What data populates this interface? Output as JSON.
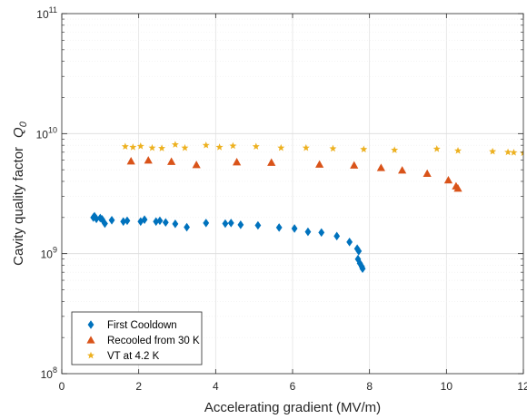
{
  "chart_data": {
    "type": "scatter",
    "xlabel": "Accelerating gradient (MV/m)",
    "ylabel": "Cavity quality factor",
    "ylabel_symbol": "Q",
    "ylabel_subscript": "0",
    "xlim": [
      0,
      12
    ],
    "ylim": [
      100000000,
      100000000000
    ],
    "yscale": "log",
    "grid": true,
    "legend_position": "lower-left",
    "x_ticks": [
      0,
      2,
      4,
      6,
      8,
      10,
      12
    ],
    "x_tick_labels": [
      "0",
      "2",
      "4",
      "6",
      "8",
      "10",
      "12"
    ],
    "y_ticks": [
      {
        "value": 100000000,
        "base": "10",
        "exp": "8"
      },
      {
        "value": 1000000000,
        "base": "10",
        "exp": "9"
      },
      {
        "value": 10000000000,
        "base": "10",
        "exp": "10"
      },
      {
        "value": 100000000000,
        "base": "10",
        "exp": "11"
      }
    ],
    "series": [
      {
        "name": "First Cooldown",
        "marker": "diamond",
        "color": "#0072BD",
        "points": [
          [
            0.82,
            2000000000.0
          ],
          [
            0.85,
            2050000000.0
          ],
          [
            0.9,
            1950000000.0
          ],
          [
            1.0,
            1980000000.0
          ],
          [
            1.05,
            1930000000.0
          ],
          [
            1.12,
            1780000000.0
          ],
          [
            1.3,
            1900000000.0
          ],
          [
            1.6,
            1850000000.0
          ],
          [
            1.7,
            1880000000.0
          ],
          [
            2.05,
            1850000000.0
          ],
          [
            2.15,
            1920000000.0
          ],
          [
            2.45,
            1850000000.0
          ],
          [
            2.55,
            1880000000.0
          ],
          [
            2.7,
            1820000000.0
          ],
          [
            2.95,
            1770000000.0
          ],
          [
            3.25,
            1660000000.0
          ],
          [
            3.75,
            1800000000.0
          ],
          [
            4.25,
            1780000000.0
          ],
          [
            4.4,
            1800000000.0
          ],
          [
            4.65,
            1740000000.0
          ],
          [
            5.1,
            1720000000.0
          ],
          [
            5.65,
            1650000000.0
          ],
          [
            6.05,
            1620000000.0
          ],
          [
            6.4,
            1520000000.0
          ],
          [
            6.75,
            1500000000.0
          ],
          [
            7.15,
            1400000000.0
          ],
          [
            7.48,
            1250000000.0
          ],
          [
            7.68,
            1100000000.0
          ],
          [
            7.72,
            1050000000.0
          ],
          [
            7.7,
            900000000.0
          ],
          [
            7.75,
            830000000.0
          ],
          [
            7.8,
            780000000.0
          ],
          [
            7.82,
            750000000.0
          ]
        ]
      },
      {
        "name": "Recooled from 30 K",
        "marker": "triangle",
        "color": "#D95319",
        "points": [
          [
            1.8,
            5900000000.0
          ],
          [
            2.25,
            6000000000.0
          ],
          [
            2.85,
            5850000000.0
          ],
          [
            3.5,
            5500000000.0
          ],
          [
            4.55,
            5800000000.0
          ],
          [
            5.45,
            5750000000.0
          ],
          [
            6.7,
            5550000000.0
          ],
          [
            7.6,
            5450000000.0
          ],
          [
            8.3,
            5200000000.0
          ],
          [
            8.85,
            4950000000.0
          ],
          [
            9.5,
            4650000000.0
          ],
          [
            10.05,
            4100000000.0
          ],
          [
            10.25,
            3650000000.0
          ],
          [
            10.3,
            3500000000.0
          ]
        ]
      },
      {
        "name": "VT at 4.2 K",
        "marker": "star",
        "color": "#EDB120",
        "points": [
          [
            1.65,
            7800000000.0
          ],
          [
            1.85,
            7700000000.0
          ],
          [
            2.05,
            7850000000.0
          ],
          [
            2.35,
            7600000000.0
          ],
          [
            2.6,
            7550000000.0
          ],
          [
            2.95,
            8100000000.0
          ],
          [
            3.2,
            7600000000.0
          ],
          [
            3.75,
            8000000000.0
          ],
          [
            4.1,
            7700000000.0
          ],
          [
            4.45,
            7900000000.0
          ],
          [
            5.05,
            7800000000.0
          ],
          [
            5.7,
            7600000000.0
          ],
          [
            6.35,
            7600000000.0
          ],
          [
            7.05,
            7500000000.0
          ],
          [
            7.85,
            7400000000.0
          ],
          [
            8.65,
            7300000000.0
          ],
          [
            9.75,
            7450000000.0
          ],
          [
            10.3,
            7200000000.0
          ],
          [
            11.2,
            7100000000.0
          ],
          [
            11.6,
            7000000000.0
          ],
          [
            11.75,
            6950000000.0
          ],
          [
            12.0,
            6900000000.0
          ]
        ]
      }
    ]
  }
}
